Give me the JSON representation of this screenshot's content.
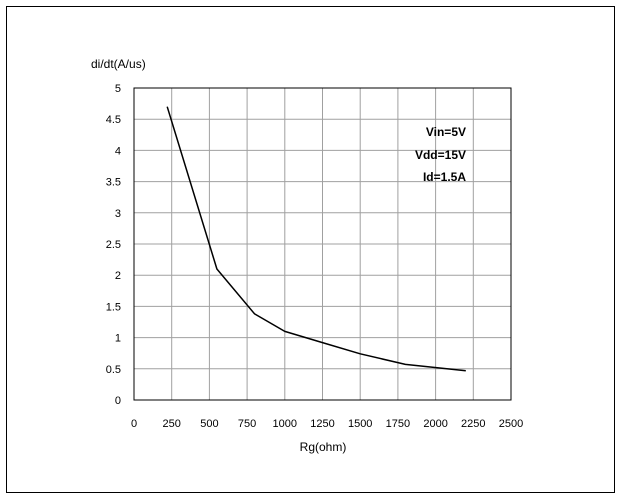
{
  "chart_data": {
    "type": "line",
    "title": "",
    "xlabel": "Rg(ohm)",
    "ylabel": "di/dt(A/us)",
    "xlim": [
      0,
      2500
    ],
    "ylim": [
      0,
      5
    ],
    "x_ticks": [
      "0",
      "250",
      "500",
      "750",
      "1000",
      "1250",
      "1500",
      "1750",
      "2000",
      "2250",
      "2500"
    ],
    "y_ticks": [
      "0",
      "0.5",
      "1",
      "1.5",
      "2",
      "2.5",
      "3",
      "3.5",
      "4",
      "4.5",
      "5"
    ],
    "grid": true,
    "annotations": [
      "Vin=5V",
      "Vdd=15V",
      "Id=1.5A"
    ],
    "series": [
      {
        "x": [
          220,
          550,
          800,
          1000,
          1250,
          1500,
          1800,
          2200
        ],
        "y": [
          4.7,
          2.1,
          1.38,
          1.1,
          0.92,
          0.74,
          0.57,
          0.47
        ],
        "color": "#000000"
      }
    ]
  }
}
